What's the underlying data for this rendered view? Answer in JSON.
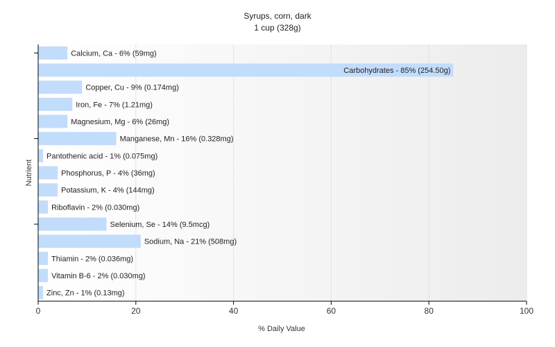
{
  "chart_data": {
    "type": "bar",
    "orientation": "horizontal",
    "title": "Syrups, corn, dark",
    "subtitle": "1 cup (328g)",
    "xlabel": "% Daily Value",
    "ylabel": "Nutrient",
    "xlim": [
      0,
      100
    ],
    "xticks": [
      "0",
      "20",
      "40",
      "60",
      "80",
      "100"
    ],
    "grid": true,
    "bar_color": "#c2dcfc",
    "categories": [
      "Calcium, Ca",
      "Carbohydrates",
      "Copper, Cu",
      "Iron, Fe",
      "Magnesium, Mg",
      "Manganese, Mn",
      "Pantothenic acid",
      "Phosphorus, P",
      "Potassium, K",
      "Riboflavin",
      "Selenium, Se",
      "Sodium, Na",
      "Thiamin",
      "Vitamin B-6",
      "Zinc, Zn"
    ],
    "values": [
      6,
      85,
      9,
      7,
      6,
      16,
      1,
      4,
      4,
      2,
      14,
      21,
      2,
      2,
      1
    ],
    "labels": [
      "Calcium, Ca - 6% (59mg)",
      "Carbohydrates - 85% (254.50g)",
      "Copper, Cu - 9% (0.174mg)",
      "Iron, Fe - 7% (1.21mg)",
      "Magnesium, Mg - 6% (26mg)",
      "Manganese, Mn - 16% (0.328mg)",
      "Pantothenic acid - 1% (0.075mg)",
      "Phosphorus, P - 4% (36mg)",
      "Potassium, K - 4% (144mg)",
      "Riboflavin - 2% (0.030mg)",
      "Selenium, Se - 14% (9.5mcg)",
      "Sodium, Na - 21% (508mg)",
      "Thiamin - 2% (0.036mg)",
      "Vitamin B-6 - 2% (0.030mg)",
      "Zinc, Zn - 1% (0.13mg)"
    ]
  }
}
